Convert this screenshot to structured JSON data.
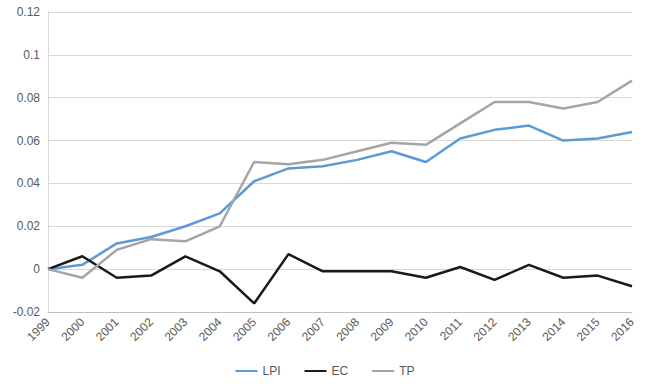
{
  "chart_data": {
    "type": "line",
    "categories": [
      "1999",
      "2000",
      "2001",
      "2002",
      "2003",
      "2004",
      "2005",
      "2006",
      "2007",
      "2008",
      "2009",
      "2010",
      "2011",
      "2012",
      "2013",
      "2014",
      "2015",
      "2016"
    ],
    "series": [
      {
        "name": "LPI",
        "color": "#5b9bd5",
        "values": [
          0,
          0.002,
          0.012,
          0.015,
          0.02,
          0.026,
          0.041,
          0.047,
          0.048,
          0.051,
          0.055,
          0.05,
          0.061,
          0.065,
          0.067,
          0.06,
          0.061,
          0.064
        ]
      },
      {
        "name": "EC",
        "color": "#1a1a1a",
        "values": [
          0,
          0.006,
          -0.004,
          -0.003,
          0.006,
          -0.001,
          -0.016,
          0.007,
          -0.001,
          -0.001,
          -0.001,
          -0.004,
          0.001,
          -0.005,
          0.002,
          -0.004,
          -0.003,
          -0.008
        ]
      },
      {
        "name": "TP",
        "color": "#a5a5a5",
        "values": [
          0,
          -0.004,
          0.009,
          0.014,
          0.013,
          0.02,
          0.05,
          0.049,
          0.051,
          0.055,
          0.059,
          0.058,
          0.068,
          0.078,
          0.078,
          0.075,
          0.078,
          0.088
        ]
      }
    ],
    "ylim": [
      -0.02,
      0.12
    ],
    "yticks": [
      -0.02,
      0,
      0.02,
      0.04,
      0.06,
      0.08,
      0.1,
      0.12
    ],
    "grid": true,
    "legend": "bottom"
  }
}
